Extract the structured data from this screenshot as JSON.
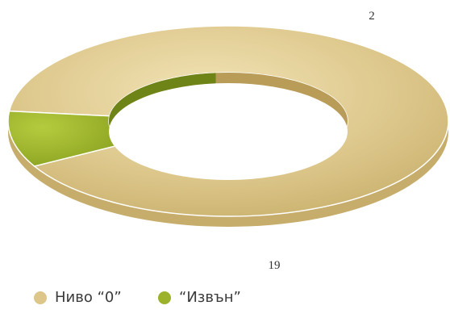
{
  "chart_data": {
    "type": "pie",
    "style": "3d-doughnut",
    "categories": [
      "Ниво “0”",
      "“Извън”"
    ],
    "values": [
      19,
      2
    ],
    "colors": [
      "#dcc68a",
      "#9cb22b"
    ],
    "legend_position": "bottom-left"
  }
}
